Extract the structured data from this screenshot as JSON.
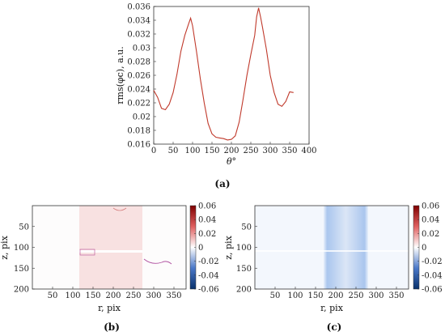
{
  "chart_data": [
    {
      "panel_label": "(a)",
      "type": "line",
      "xlabel": "θ°",
      "ylabel": "rms(φc), a.u.",
      "xlim": [
        0,
        400
      ],
      "ylim": [
        0.016,
        0.036
      ],
      "xticks": [
        0,
        50,
        100,
        150,
        200,
        250,
        300,
        350,
        400
      ],
      "yticks": [
        0.016,
        0.018,
        0.02,
        0.022,
        0.024,
        0.026,
        0.028,
        0.03,
        0.032,
        0.034,
        0.036
      ],
      "grid": false,
      "line_color": "#c0392b",
      "series": [
        {
          "x": [
            0,
            10,
            20,
            30,
            40,
            50,
            60,
            70,
            80,
            90,
            95,
            100,
            110,
            120,
            130,
            140,
            150,
            160,
            170,
            180,
            190,
            200,
            210,
            220,
            230,
            240,
            250,
            260,
            265,
            270,
            275,
            280,
            290,
            300,
            310,
            320,
            330,
            340,
            350,
            360
          ],
          "y": [
            0.0238,
            0.0228,
            0.0212,
            0.021,
            0.0218,
            0.0235,
            0.0262,
            0.0295,
            0.0318,
            0.0335,
            0.0343,
            0.0332,
            0.0295,
            0.0255,
            0.022,
            0.019,
            0.0175,
            0.017,
            0.0169,
            0.0168,
            0.0166,
            0.0167,
            0.0172,
            0.0192,
            0.0225,
            0.026,
            0.029,
            0.0318,
            0.0345,
            0.0358,
            0.0345,
            0.033,
            0.0298,
            0.026,
            0.0235,
            0.0218,
            0.0215,
            0.0222,
            0.0236,
            0.0235
          ]
        }
      ]
    },
    {
      "panel_label": "(b)",
      "type": "heatmap",
      "xlabel": "r, pix",
      "ylabel": "z, pix",
      "xlim": [
        0,
        380
      ],
      "ylim": [
        0,
        200
      ],
      "xticks": [
        50,
        100,
        150,
        200,
        250,
        300,
        350
      ],
      "yticks": [
        50,
        100,
        150,
        200
      ],
      "colorbar": {
        "range": [
          -0.06,
          0.06
        ],
        "ticks": [
          "0.06",
          "0.04",
          "0.02",
          "0",
          "-0.02",
          "-0.04",
          "-0.06"
        ],
        "colors": [
          "#08306b",
          "#4a78c8",
          "#ffffff",
          "#e06060",
          "#7f0000"
        ]
      }
    },
    {
      "panel_label": "(c)",
      "type": "heatmap",
      "xlabel": "r, pix",
      "ylabel": "z, pix",
      "xlim": [
        0,
        380
      ],
      "ylim": [
        0,
        200
      ],
      "xticks": [
        50,
        100,
        150,
        200,
        250,
        300,
        350
      ],
      "yticks": [
        50,
        100,
        150,
        200
      ],
      "colorbar": {
        "range": [
          -0.06,
          0.06
        ],
        "ticks": [
          "0.06",
          "0.04",
          "0.02",
          "0",
          "-0.02",
          "-0.04",
          "-0.06"
        ],
        "colors": [
          "#08306b",
          "#4a78c8",
          "#ffffff",
          "#e06060",
          "#7f0000"
        ]
      }
    }
  ]
}
